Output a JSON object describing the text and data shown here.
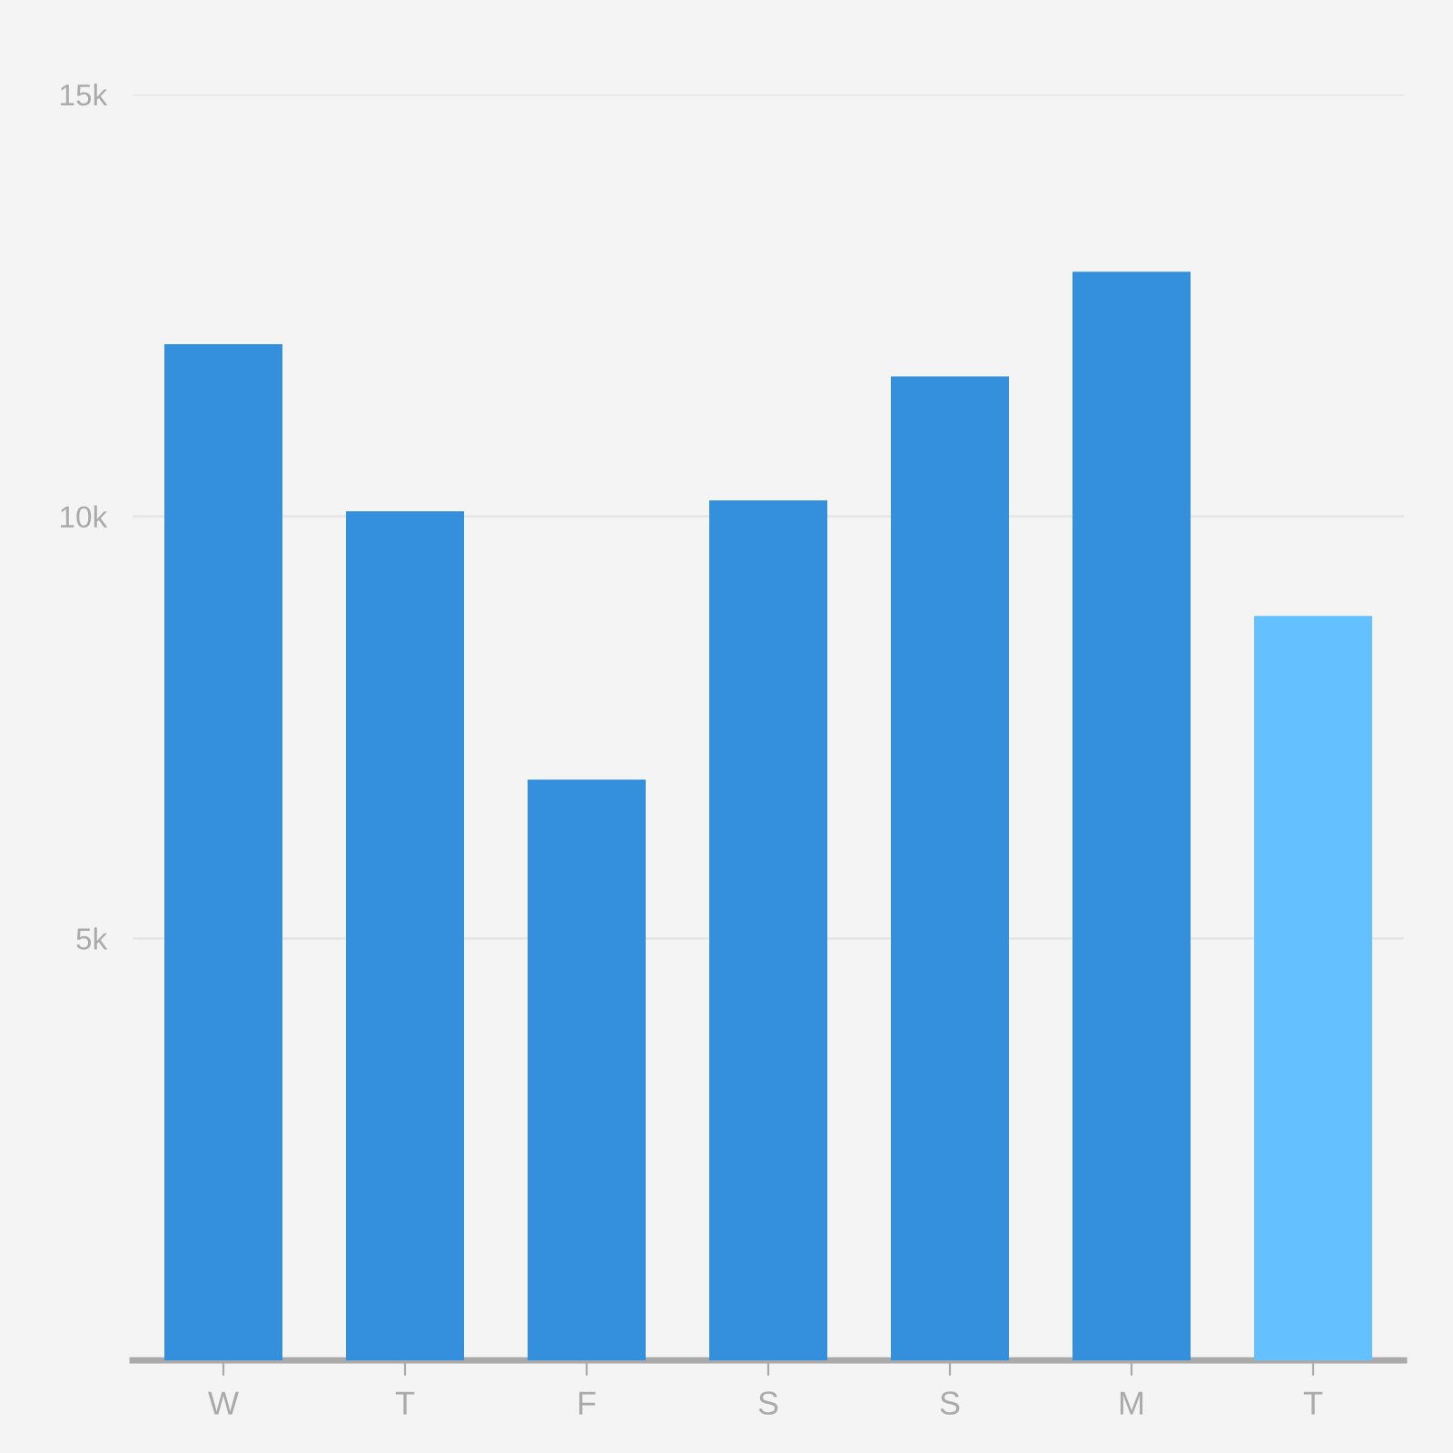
{
  "chart_data": {
    "type": "bar",
    "categories": [
      "W",
      "T",
      "F",
      "S",
      "S",
      "M",
      "T"
    ],
    "values": [
      12040,
      10060,
      6880,
      10190,
      11660,
      12900,
      8820
    ],
    "colors": [
      "#348fdd",
      "#348fdd",
      "#348fdd",
      "#348fdd",
      "#348fdd",
      "#348fdd",
      "#64c0fe"
    ],
    "ylim": [
      0,
      15000
    ],
    "yticks": [
      {
        "value": 5000,
        "label": "5k"
      },
      {
        "value": 10000,
        "label": "10k"
      },
      {
        "value": 15000,
        "label": "15k"
      }
    ],
    "grid": "y"
  }
}
